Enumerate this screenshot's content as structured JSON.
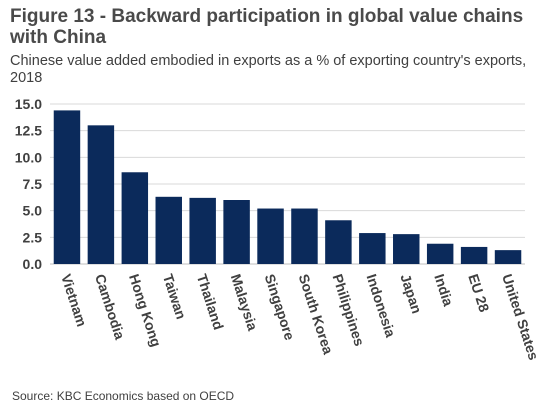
{
  "figure": {
    "title": "Figure 13 - Backward participation in global value chains with China",
    "subtitle": "Chinese value added embodied in exports as a % of exporting country's exports, 2018",
    "source": "Source: KBC Economics based on OECD"
  },
  "chart_data": {
    "type": "bar",
    "categories": [
      "Vietnam",
      "Cambodia",
      "Hong Kong",
      "Taiwan",
      "Thailand",
      "Malaysia",
      "Singapore",
      "South Korea",
      "Philippines",
      "Indonesia",
      "Japan",
      "India",
      "EU 28",
      "United States"
    ],
    "values": [
      14.4,
      13.0,
      8.6,
      6.3,
      6.2,
      6.0,
      5.2,
      5.2,
      4.1,
      2.9,
      2.8,
      1.9,
      1.6,
      1.3
    ],
    "ylim": [
      0,
      15
    ],
    "yticks": [
      "0.0",
      "2.5",
      "5.0",
      "7.5",
      "10.0",
      "12.5",
      "15.0"
    ],
    "ytick_values": [
      0,
      2.5,
      5,
      7.5,
      10,
      12.5,
      15
    ],
    "bar_color": "#0b2a5b",
    "grid": true,
    "grid_color": "#d9d9d9"
  }
}
